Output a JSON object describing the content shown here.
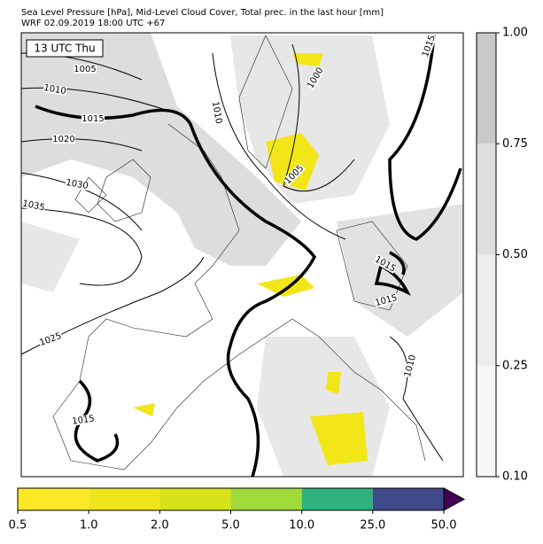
{
  "header": {
    "title_line1": "Sea Level Pressure [hPa], Mid-Level Cloud Cover, Total prec. in the last hour [mm]",
    "title_line2": "WRF 02.09.2019 18:00 UTC +67"
  },
  "map": {
    "time_label": "13 UTC Thu",
    "isobar_labels": [
      "1005",
      "1010",
      "1015",
      "1020",
      "1030",
      "1035",
      "1025",
      "1015",
      "1010",
      "1000",
      "1005",
      "1015",
      "1015",
      "1015",
      "1010"
    ]
  },
  "cloud_colorbar": {
    "ticks": [
      "0.10",
      "0.25",
      "0.50",
      "0.75",
      "1.00"
    ],
    "colors": [
      "#f7f7f7",
      "#ececec",
      "#dedede",
      "#c9c9c9"
    ]
  },
  "precip_colorbar": {
    "ticks": [
      "0.5",
      "1.0",
      "2.0",
      "5.0",
      "10.0",
      "25.0",
      "50.0"
    ],
    "colors": [
      "#fde725",
      "#f0e51c",
      "#d8e219",
      "#a0da39",
      "#2db27d",
      "#3e4a89"
    ],
    "extend_color": "#440154"
  }
}
